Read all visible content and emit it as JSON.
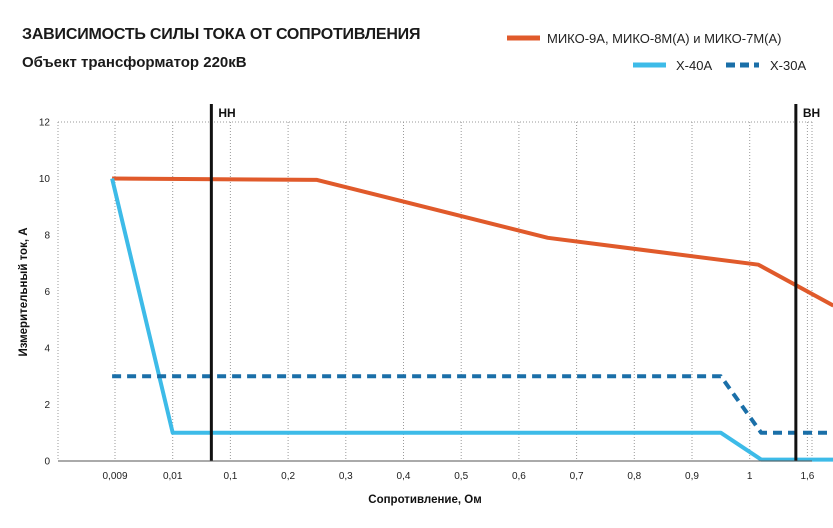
{
  "chart_data": {
    "type": "line",
    "title": "ЗАВИСИМОСТЬ СИЛЫ ТОКА ОТ СОПРОТИВЛЕНИЯ",
    "subtitle": "Объект трансформатор 220кВ",
    "xlabel": "Сопротивление, Ом",
    "ylabel": "Измерительный ток, А",
    "x_ticks": [
      "0,009",
      "0,01",
      "0,1",
      "0,2",
      "0,3",
      "0,4",
      "0,5",
      "0,6",
      "0,7",
      "0,8",
      "0,9",
      "1",
      "1,6"
    ],
    "ylim": [
      0,
      12
    ],
    "y_ticks": [
      "0",
      "2",
      "4",
      "6",
      "8",
      "10",
      "12"
    ],
    "grid": "vertical dotted",
    "legend_placement": "top-right",
    "markers": [
      {
        "label": "НН",
        "x_index": 1.67
      },
      {
        "label": "ВН",
        "x_index": 11.8
      }
    ],
    "series": [
      {
        "name": "МИКО-9А, МИКО-8М(А) и МИКО-7М(А)",
        "color": "#e05a2b",
        "style": "solid",
        "points": [
          [
            -0.05,
            10
          ],
          [
            3.5,
            9.95
          ],
          [
            7.5,
            7.9
          ],
          [
            11.15,
            6.95
          ],
          [
            12.45,
            5.5
          ]
        ]
      },
      {
        "name": "Х-40А",
        "color": "#3dbbe8",
        "style": "solid",
        "points": [
          [
            -0.05,
            10
          ],
          [
            1.0,
            1.0
          ],
          [
            10.5,
            1.0
          ],
          [
            11.2,
            0.05
          ],
          [
            12.55,
            0.05
          ]
        ]
      },
      {
        "name": "Х-30А",
        "color": "#1a6fa8",
        "style": "dashed",
        "points": [
          [
            -0.05,
            3.0
          ],
          [
            10.5,
            3.0
          ],
          [
            11.2,
            1.0
          ],
          [
            12.55,
            1.0
          ]
        ]
      }
    ]
  }
}
